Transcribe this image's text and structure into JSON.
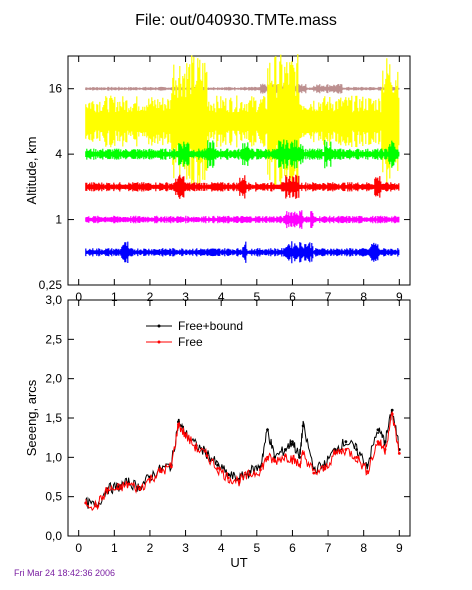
{
  "page": {
    "title": "File: out/040930.TMTe.mass",
    "footer": "Fri Mar 24 18:42:36 2006"
  },
  "chart_data": [
    {
      "type": "line",
      "title": "",
      "xlabel": "",
      "ylabel": "Altitude, km",
      "xlim": [
        -0.3,
        9.3
      ],
      "ylim": [
        0.25,
        32
      ],
      "yscale": "log",
      "xticks": [
        0,
        1,
        2,
        3,
        4,
        5,
        6,
        7,
        8,
        9
      ],
      "yticks": [
        {
          "value": 0.25,
          "label": "0,25"
        },
        {
          "value": 1,
          "label": "1"
        },
        {
          "value": 4,
          "label": "4"
        },
        {
          "value": 16,
          "label": "16"
        }
      ],
      "grid": false,
      "series": [
        {
          "altitude_km": 16,
          "x_range": [
            0.2,
            9.0
          ],
          "color": "#bc8f8f",
          "amplitude": 0.04,
          "bursts": [
            [
              5.1,
              6.4
            ],
            [
              6.6,
              7.4
            ]
          ]
        },
        {
          "altitude_km": 8,
          "x_range": [
            0.2,
            9.0
          ],
          "color": "#ffff00",
          "amplitude": 0.55,
          "bursts": [
            [
              2.6,
              3.6
            ],
            [
              5.3,
              6.2
            ],
            [
              8.5,
              9.0
            ]
          ]
        },
        {
          "altitude_km": 4,
          "x_range": [
            0.2,
            9.0
          ],
          "color": "#00ff00",
          "amplitude": 0.12,
          "bursts": [
            [
              2.8,
              3.1
            ],
            [
              3.6,
              3.8
            ],
            [
              4.6,
              4.8
            ],
            [
              5.6,
              6.3
            ],
            [
              6.9,
              7.1
            ],
            [
              8.7,
              8.9
            ]
          ]
        },
        {
          "altitude_km": 2,
          "x_range": [
            0.2,
            9.0
          ],
          "color": "#ff0000",
          "amplitude": 0.1,
          "bursts": [
            [
              2.7,
              3.0
            ],
            [
              4.5,
              4.7
            ],
            [
              5.8,
              6.2
            ],
            [
              8.3,
              8.5
            ]
          ]
        },
        {
          "altitude_km": 1,
          "x_range": [
            0.2,
            9.0
          ],
          "color": "#ff00ff",
          "amplitude": 0.08,
          "bursts": [
            [
              5.8,
              6.3
            ],
            [
              6.5,
              6.6
            ]
          ]
        },
        {
          "altitude_km": 0.5,
          "x_range": [
            0.2,
            9.0
          ],
          "color": "#0000ff",
          "amplitude": 0.09,
          "bursts": [
            [
              1.2,
              1.4
            ],
            [
              4.6,
              4.7
            ],
            [
              5.8,
              6.6
            ],
            [
              8.2,
              8.4
            ]
          ]
        }
      ]
    },
    {
      "type": "line",
      "title": "",
      "xlabel": "UT",
      "ylabel": "Seeeng, arcs",
      "xlim": [
        -0.3,
        9.3
      ],
      "ylim": [
        0.0,
        3.0
      ],
      "xticks": [
        0,
        1,
        2,
        3,
        4,
        5,
        6,
        7,
        8,
        9
      ],
      "yticks": [
        {
          "value": 0.0,
          "label": "0,0"
        },
        {
          "value": 0.5,
          "label": "0,5"
        },
        {
          "value": 1.0,
          "label": "1,0"
        },
        {
          "value": 1.5,
          "label": "1,5"
        },
        {
          "value": 2.0,
          "label": "2,0"
        },
        {
          "value": 2.5,
          "label": "2,5"
        },
        {
          "value": 3.0,
          "label": "3,0"
        }
      ],
      "grid": false,
      "legend_position": "top-center",
      "series": [
        {
          "name": "Free+bound",
          "color": "#000000",
          "x": [
            0.2,
            0.5,
            0.8,
            1.1,
            1.4,
            1.7,
            2.0,
            2.3,
            2.6,
            2.8,
            3.0,
            3.3,
            3.6,
            3.9,
            4.2,
            4.5,
            4.8,
            5.1,
            5.3,
            5.5,
            5.8,
            6.0,
            6.2,
            6.3,
            6.6,
            6.9,
            7.2,
            7.5,
            7.8,
            8.1,
            8.4,
            8.6,
            8.8,
            9.0
          ],
          "y": [
            0.42,
            0.38,
            0.6,
            0.62,
            0.68,
            0.62,
            0.75,
            0.85,
            0.9,
            1.45,
            1.3,
            1.15,
            1.05,
            0.9,
            0.78,
            0.72,
            0.82,
            0.88,
            1.35,
            1.0,
            1.1,
            1.2,
            1.0,
            1.4,
            0.85,
            0.9,
            1.1,
            1.2,
            1.1,
            0.9,
            1.35,
            1.2,
            1.6,
            1.1
          ]
        },
        {
          "name": "Free",
          "color": "#ff0000",
          "x": [
            0.2,
            0.5,
            0.8,
            1.1,
            1.4,
            1.7,
            2.0,
            2.3,
            2.6,
            2.8,
            3.0,
            3.3,
            3.6,
            3.9,
            4.2,
            4.5,
            4.8,
            5.1,
            5.3,
            5.5,
            5.8,
            6.0,
            6.2,
            6.3,
            6.6,
            6.9,
            7.2,
            7.5,
            7.8,
            8.1,
            8.4,
            8.6,
            8.8,
            9.0
          ],
          "y": [
            0.42,
            0.38,
            0.58,
            0.6,
            0.66,
            0.6,
            0.72,
            0.82,
            0.88,
            1.42,
            1.28,
            1.12,
            1.02,
            0.86,
            0.74,
            0.7,
            0.78,
            0.84,
            1.0,
            0.95,
            1.02,
            0.98,
            0.9,
            1.05,
            0.8,
            0.85,
            1.05,
            1.1,
            1.0,
            0.82,
            1.2,
            1.1,
            1.55,
            1.05
          ]
        }
      ]
    }
  ]
}
